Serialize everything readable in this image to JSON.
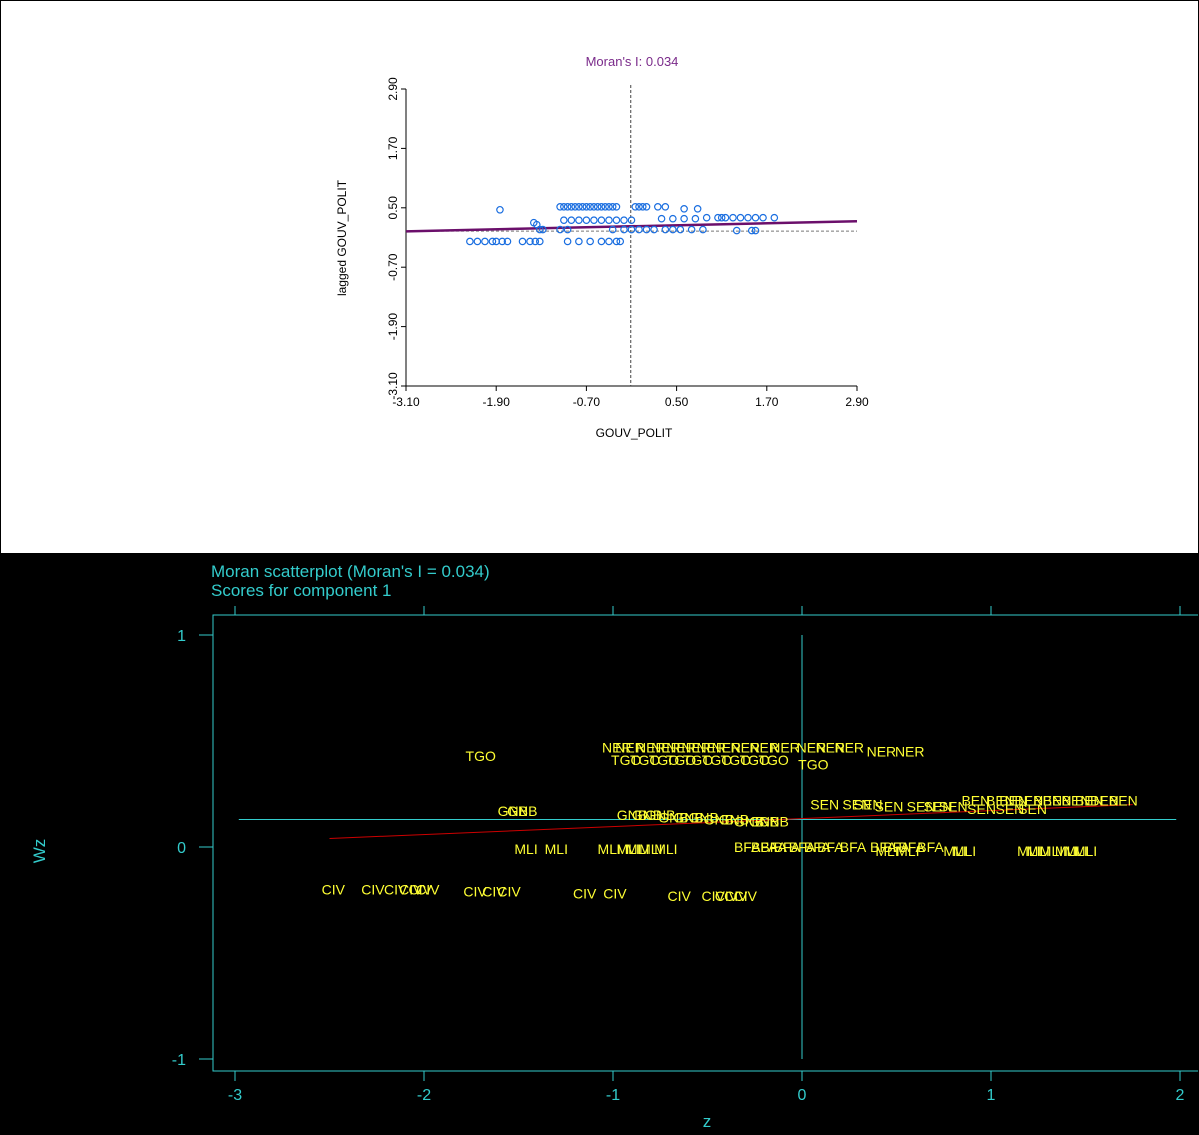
{
  "chart_data": [
    {
      "type": "scatter",
      "title": "Moran's I: 0.034",
      "xlabel": "GOUV_POLIT",
      "ylabel": "lagged GOUV_POLIT",
      "xlim": [
        -3.1,
        2.9
      ],
      "ylim": [
        -3.1,
        2.9
      ],
      "xticks": [
        "-3.10",
        "-1.90",
        "-0.70",
        "0.50",
        "1.70",
        "2.90"
      ],
      "yticks": [
        "-3.10",
        "-1.90",
        "-0.70",
        "0.50",
        "1.70",
        "2.90"
      ],
      "vline": -0.11,
      "hline": 0.03,
      "regression": {
        "intercept": 0.13,
        "slope": 0.034
      },
      "colors": {
        "points": "#1a6ee0",
        "regression": "#6b0f6b",
        "title": "#7a2a8a"
      },
      "points": [
        [
          -1.85,
          0.46
        ],
        [
          -1.95,
          -0.18
        ],
        [
          -1.9,
          -0.18
        ],
        [
          -1.82,
          -0.18
        ],
        [
          -1.75,
          -0.18
        ],
        [
          -2.05,
          -0.18
        ],
        [
          -2.25,
          -0.18
        ],
        [
          -2.15,
          -0.18
        ],
        [
          -1.45,
          -0.18
        ],
        [
          -1.38,
          -0.18
        ],
        [
          -1.32,
          -0.18
        ],
        [
          -1.55,
          -0.18
        ],
        [
          -1.4,
          0.2
        ],
        [
          -1.36,
          0.16
        ],
        [
          -1.32,
          0.06
        ],
        [
          -1.28,
          0.06
        ],
        [
          -1.05,
          0.52
        ],
        [
          -1.0,
          0.52
        ],
        [
          -0.95,
          0.52
        ],
        [
          -0.9,
          0.52
        ],
        [
          -0.85,
          0.52
        ],
        [
          -0.8,
          0.52
        ],
        [
          -0.75,
          0.52
        ],
        [
          -0.7,
          0.52
        ],
        [
          -0.65,
          0.52
        ],
        [
          -0.6,
          0.52
        ],
        [
          -0.55,
          0.52
        ],
        [
          -0.5,
          0.52
        ],
        [
          -0.45,
          0.52
        ],
        [
          -0.4,
          0.52
        ],
        [
          -0.35,
          0.52
        ],
        [
          -0.3,
          0.52
        ],
        [
          -0.05,
          0.52
        ],
        [
          0.0,
          0.52
        ],
        [
          0.05,
          0.52
        ],
        [
          0.1,
          0.52
        ],
        [
          0.25,
          0.52
        ],
        [
          0.35,
          0.52
        ],
        [
          0.6,
          0.48
        ],
        [
          0.78,
          0.48
        ],
        [
          -1.0,
          0.25
        ],
        [
          -0.9,
          0.25
        ],
        [
          -0.8,
          0.25
        ],
        [
          -0.7,
          0.25
        ],
        [
          -0.6,
          0.25
        ],
        [
          -0.5,
          0.25
        ],
        [
          -0.4,
          0.25
        ],
        [
          -0.3,
          0.25
        ],
        [
          -0.2,
          0.25
        ],
        [
          -0.1,
          0.25
        ],
        [
          0.3,
          0.28
        ],
        [
          0.45,
          0.28
        ],
        [
          0.6,
          0.28
        ],
        [
          0.75,
          0.28
        ],
        [
          0.9,
          0.3
        ],
        [
          1.05,
          0.3
        ],
        [
          1.1,
          0.3
        ],
        [
          1.15,
          0.3
        ],
        [
          1.25,
          0.3
        ],
        [
          1.35,
          0.3
        ],
        [
          1.45,
          0.3
        ],
        [
          1.55,
          0.3
        ],
        [
          1.65,
          0.3
        ],
        [
          1.8,
          0.3
        ],
        [
          -1.05,
          0.06
        ],
        [
          -0.95,
          0.06
        ],
        [
          -0.35,
          0.06
        ],
        [
          -0.2,
          0.06
        ],
        [
          -0.1,
          0.06
        ],
        [
          0.0,
          0.06
        ],
        [
          0.1,
          0.06
        ],
        [
          0.2,
          0.06
        ],
        [
          0.35,
          0.06
        ],
        [
          0.45,
          0.06
        ],
        [
          0.55,
          0.06
        ],
        [
          0.7,
          0.06
        ],
        [
          0.85,
          0.06
        ],
        [
          1.3,
          0.04
        ],
        [
          1.5,
          0.04
        ],
        [
          1.55,
          0.04
        ],
        [
          -0.95,
          -0.18
        ],
        [
          -0.8,
          -0.18
        ],
        [
          -0.65,
          -0.18
        ],
        [
          -0.5,
          -0.18
        ],
        [
          -0.4,
          -0.18
        ],
        [
          -0.3,
          -0.18
        ],
        [
          -0.25,
          -0.18
        ]
      ]
    },
    {
      "type": "scatter",
      "title": "Moran scatterplot (Moran's I = 0.034)",
      "subtitle": "Scores for component 1",
      "xlabel": "z",
      "ylabel": "Wz",
      "xlim": [
        -3,
        2
      ],
      "ylim": [
        -1,
        1
      ],
      "xticks": [
        "-3",
        "-2",
        "-1",
        "0",
        "1",
        "2"
      ],
      "yticks": [
        "-1",
        "0",
        "1"
      ],
      "vline": 0,
      "hline": 0.13,
      "fit": {
        "x": [
          -2.5,
          1.75
        ],
        "y": [
          0.04,
          0.2
        ]
      },
      "colors": {
        "background": "#000000",
        "axes": "#33cccc",
        "labels": "#ffff33",
        "fit": "#cc0000"
      },
      "labels": [
        {
          "t": "TGO",
          "x": -1.7,
          "y": 0.43
        },
        {
          "t": "NER",
          "x": -0.98,
          "y": 0.47
        },
        {
          "t": "NER",
          "x": -0.91,
          "y": 0.47
        },
        {
          "t": "NER",
          "x": -0.8,
          "y": 0.47
        },
        {
          "t": "NER",
          "x": -0.72,
          "y": 0.47
        },
        {
          "t": "NER",
          "x": -0.64,
          "y": 0.47
        },
        {
          "t": "NER",
          "x": -0.56,
          "y": 0.47
        },
        {
          "t": "NER",
          "x": -0.48,
          "y": 0.47
        },
        {
          "t": "NER",
          "x": -0.4,
          "y": 0.47
        },
        {
          "t": "NER",
          "x": -0.3,
          "y": 0.47
        },
        {
          "t": "NER",
          "x": -0.2,
          "y": 0.47
        },
        {
          "t": "NER",
          "x": -0.09,
          "y": 0.47
        },
        {
          "t": "NER",
          "x": 0.05,
          "y": 0.47
        },
        {
          "t": "NER",
          "x": 0.15,
          "y": 0.47
        },
        {
          "t": "NER",
          "x": 0.25,
          "y": 0.47
        },
        {
          "t": "NER",
          "x": 0.42,
          "y": 0.45
        },
        {
          "t": "NER",
          "x": 0.57,
          "y": 0.45
        },
        {
          "t": "TGO",
          "x": -0.93,
          "y": 0.41
        },
        {
          "t": "TGO",
          "x": -0.83,
          "y": 0.41
        },
        {
          "t": "TGO",
          "x": -0.73,
          "y": 0.41
        },
        {
          "t": "TGO",
          "x": -0.64,
          "y": 0.41
        },
        {
          "t": "TGO",
          "x": -0.55,
          "y": 0.41
        },
        {
          "t": "TGO",
          "x": -0.45,
          "y": 0.41
        },
        {
          "t": "TGO",
          "x": -0.35,
          "y": 0.41
        },
        {
          "t": "TGO",
          "x": -0.25,
          "y": 0.41
        },
        {
          "t": "TGO",
          "x": -0.15,
          "y": 0.41
        },
        {
          "t": "TGO",
          "x": 0.06,
          "y": 0.39
        },
        {
          "t": "GNB",
          "x": -1.53,
          "y": 0.17
        },
        {
          "t": "GNB",
          "x": -1.48,
          "y": 0.17
        },
        {
          "t": "GNB",
          "x": -0.9,
          "y": 0.15
        },
        {
          "t": "GNB",
          "x": -0.82,
          "y": 0.15
        },
        {
          "t": "GNB",
          "x": -0.75,
          "y": 0.15
        },
        {
          "t": "GNB",
          "x": -0.68,
          "y": 0.14
        },
        {
          "t": "GNB",
          "x": -0.6,
          "y": 0.14
        },
        {
          "t": "GNB",
          "x": -0.52,
          "y": 0.14
        },
        {
          "t": "GNB",
          "x": -0.44,
          "y": 0.13
        },
        {
          "t": "GNB",
          "x": -0.36,
          "y": 0.13
        },
        {
          "t": "GNB",
          "x": -0.28,
          "y": 0.12
        },
        {
          "t": "GNB",
          "x": -0.2,
          "y": 0.12
        },
        {
          "t": "GNB",
          "x": -0.15,
          "y": 0.12
        },
        {
          "t": "SEN",
          "x": 0.12,
          "y": 0.2
        },
        {
          "t": "SEN",
          "x": 0.29,
          "y": 0.2
        },
        {
          "t": "SEN",
          "x": 0.35,
          "y": 0.2
        },
        {
          "t": "SEN",
          "x": 0.46,
          "y": 0.19
        },
        {
          "t": "SEN",
          "x": 0.63,
          "y": 0.19
        },
        {
          "t": "SEN",
          "x": 0.72,
          "y": 0.19
        },
        {
          "t": "SEN",
          "x": 0.8,
          "y": 0.19
        },
        {
          "t": "SEN",
          "x": 0.95,
          "y": 0.18
        },
        {
          "t": "SEN",
          "x": 1.1,
          "y": 0.18
        },
        {
          "t": "SEN",
          "x": 1.22,
          "y": 0.18
        },
        {
          "t": "BEN",
          "x": 0.92,
          "y": 0.22
        },
        {
          "t": "BEN",
          "x": 1.05,
          "y": 0.22
        },
        {
          "t": "BEN",
          "x": 1.12,
          "y": 0.22
        },
        {
          "t": "BEN",
          "x": 1.2,
          "y": 0.22
        },
        {
          "t": "BEN",
          "x": 1.3,
          "y": 0.22
        },
        {
          "t": "BEN",
          "x": 1.35,
          "y": 0.22
        },
        {
          "t": "BEN",
          "x": 1.45,
          "y": 0.22
        },
        {
          "t": "BEN",
          "x": 1.52,
          "y": 0.22
        },
        {
          "t": "BEN",
          "x": 1.6,
          "y": 0.22
        },
        {
          "t": "BEN",
          "x": 1.7,
          "y": 0.22
        },
        {
          "t": "MLI",
          "x": -1.46,
          "y": -0.01
        },
        {
          "t": "MLI",
          "x": -1.3,
          "y": -0.01
        },
        {
          "t": "MLI",
          "x": -1.02,
          "y": -0.01
        },
        {
          "t": "MLI",
          "x": -0.92,
          "y": -0.01
        },
        {
          "t": "MLI",
          "x": -0.87,
          "y": -0.01
        },
        {
          "t": "MLI",
          "x": -0.8,
          "y": -0.01
        },
        {
          "t": "MLI",
          "x": -0.72,
          "y": -0.01
        },
        {
          "t": "BFA",
          "x": -0.29,
          "y": 0.0
        },
        {
          "t": "BFA",
          "x": -0.2,
          "y": 0.0
        },
        {
          "t": "BFA",
          "x": -0.15,
          "y": 0.0
        },
        {
          "t": "BFA",
          "x": -0.08,
          "y": 0.0
        },
        {
          "t": "BFA",
          "x": 0.0,
          "y": 0.0
        },
        {
          "t": "BFA",
          "x": 0.08,
          "y": 0.0
        },
        {
          "t": "BFA",
          "x": 0.15,
          "y": 0.0
        },
        {
          "t": "BFA",
          "x": 0.27,
          "y": 0.0
        },
        {
          "t": "BFA",
          "x": 0.43,
          "y": 0.0
        },
        {
          "t": "BFA",
          "x": 0.5,
          "y": 0.0
        },
        {
          "t": "BFA",
          "x": 0.58,
          "y": 0.0
        },
        {
          "t": "BFA",
          "x": 0.68,
          "y": 0.0
        },
        {
          "t": "MLI",
          "x": 0.45,
          "y": -0.02
        },
        {
          "t": "MLI",
          "x": 0.56,
          "y": -0.02
        },
        {
          "t": "MLI",
          "x": 0.81,
          "y": -0.02
        },
        {
          "t": "MLI",
          "x": 0.86,
          "y": -0.02
        },
        {
          "t": "MLI",
          "x": 1.2,
          "y": -0.02
        },
        {
          "t": "MLI",
          "x": 1.25,
          "y": -0.02
        },
        {
          "t": "MLI",
          "x": 1.32,
          "y": -0.02
        },
        {
          "t": "MLI",
          "x": 1.4,
          "y": -0.02
        },
        {
          "t": "MLI",
          "x": 1.45,
          "y": -0.02
        },
        {
          "t": "MLI",
          "x": 1.5,
          "y": -0.02
        },
        {
          "t": "CIV",
          "x": -2.48,
          "y": -0.2
        },
        {
          "t": "CIV",
          "x": -2.27,
          "y": -0.2
        },
        {
          "t": "CIV",
          "x": -2.15,
          "y": -0.2
        },
        {
          "t": "CIV",
          "x": -2.07,
          "y": -0.2
        },
        {
          "t": "CIV",
          "x": -2.02,
          "y": -0.2
        },
        {
          "t": "CIV",
          "x": -1.98,
          "y": -0.2
        },
        {
          "t": "CIV",
          "x": -1.73,
          "y": -0.21
        },
        {
          "t": "CIV",
          "x": -1.63,
          "y": -0.21
        },
        {
          "t": "CIV",
          "x": -1.55,
          "y": -0.21
        },
        {
          "t": "CIV",
          "x": -1.15,
          "y": -0.22
        },
        {
          "t": "CIV",
          "x": -0.99,
          "y": -0.22
        },
        {
          "t": "CIV",
          "x": -0.65,
          "y": -0.23
        },
        {
          "t": "CIV",
          "x": -0.47,
          "y": -0.23
        },
        {
          "t": "CIV",
          "x": -0.4,
          "y": -0.23
        },
        {
          "t": "CIV",
          "x": -0.35,
          "y": -0.23
        },
        {
          "t": "CIV",
          "x": -0.3,
          "y": -0.23
        }
      ]
    }
  ]
}
